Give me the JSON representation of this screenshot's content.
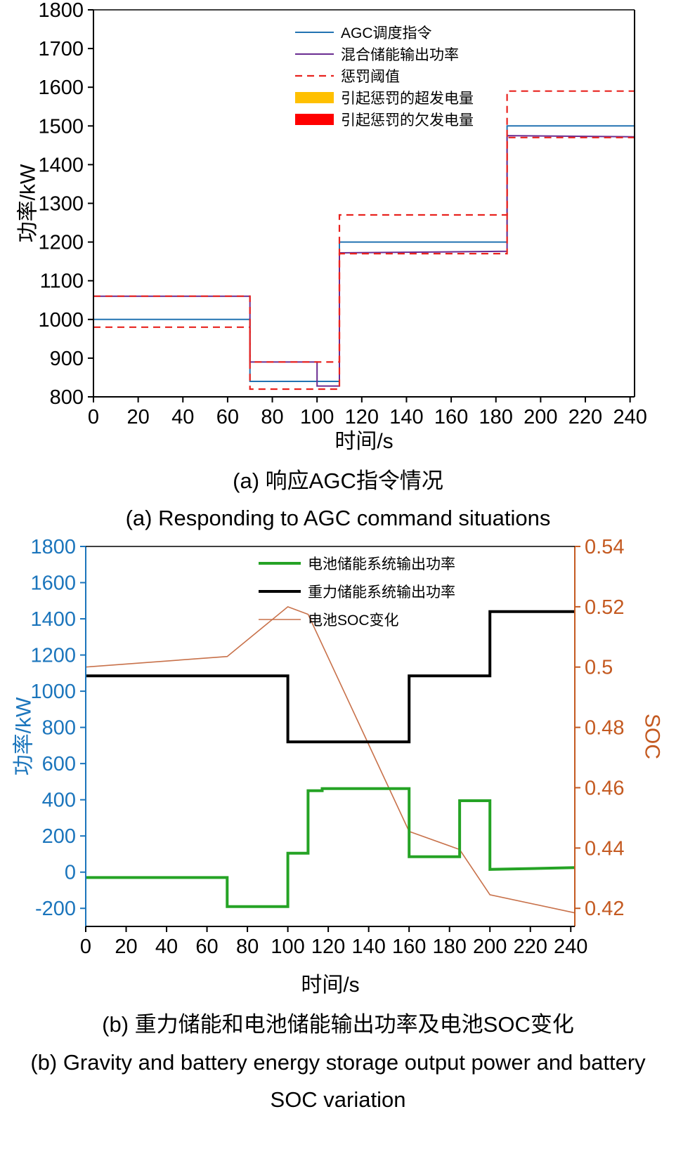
{
  "captions": {
    "a_cn": "(a) 响应AGC指令情况",
    "a_en": "(a) Responding to AGC command situations",
    "b_cn": "(b) 重力储能和电池储能输出功率及电池SOC变化",
    "b_en_line1": "(b) Gravity and battery energy storage output power and battery",
    "b_en_line2": "SOC variation"
  },
  "colors": {
    "agc_command_blue": "#2273b2",
    "hybrid_output_purple": "#6a2c91",
    "penalty_threshold_red": "#e8231f",
    "over_generation_gold": "#ffc000",
    "under_generation_red": "#ff0000",
    "battery_green": "#25a325",
    "gravity_black": "#000000",
    "soc_orange": "#c8714a",
    "left_axis_blue": "#1b75bc",
    "right_axis_orange": "#c45a21"
  },
  "chart_data": [
    {
      "id": "chart-a",
      "type": "line",
      "title": "(a) 响应AGC指令情况",
      "xlabel": "时间/s",
      "ylabel": "功率/kW",
      "xlim": [
        0,
        242
      ],
      "ylim": [
        800,
        1800
      ],
      "xticks": [
        0,
        20,
        40,
        60,
        80,
        100,
        120,
        140,
        160,
        180,
        200,
        220,
        240
      ],
      "yticks": [
        800,
        900,
        1000,
        1100,
        1200,
        1300,
        1400,
        1500,
        1600,
        1700,
        1800
      ],
      "legend": [
        {
          "label": "AGC调度指令",
          "swatch": "line",
          "color": "#2273b2",
          "lw": 2
        },
        {
          "label": "混合储能输出功率",
          "swatch": "line",
          "color": "#6a2c91",
          "lw": 2
        },
        {
          "label": "惩罚阈值",
          "swatch": "dashed",
          "color": "#e8231f",
          "lw": 2.2
        },
        {
          "label": "引起惩罚的超发电量",
          "swatch": "bar",
          "color": "#ffc000"
        },
        {
          "label": "引起惩罚的欠发电量",
          "swatch": "bar",
          "color": "#ff0000"
        }
      ],
      "series": [
        {
          "name": "AGC调度指令",
          "color": "#2273b2",
          "width": 2,
          "points": [
            [
              0,
              1000
            ],
            [
              70,
              1000
            ],
            [
              70,
              840
            ],
            [
              110,
              840
            ],
            [
              110,
              1200
            ],
            [
              185,
              1200
            ],
            [
              185,
              1500
            ],
            [
              242,
              1500
            ]
          ]
        },
        {
          "name": "混合储能输出功率",
          "color": "#6a2c91",
          "width": 2,
          "points": [
            [
              0,
              1060
            ],
            [
              70,
              1060
            ],
            [
              70,
              890
            ],
            [
              100,
              890
            ],
            [
              100,
              828
            ],
            [
              110,
              828
            ],
            [
              110,
              1172
            ],
            [
              185,
              1176
            ],
            [
              185,
              1475
            ],
            [
              242,
              1472
            ]
          ]
        },
        {
          "name": "惩罚阈值-上限",
          "color": "#e8231f",
          "width": 2.2,
          "dash": "10 7",
          "points": [
            [
              0,
              1060
            ],
            [
              70,
              1060
            ],
            [
              70,
              890
            ],
            [
              110,
              890
            ],
            [
              110,
              1270
            ],
            [
              185,
              1270
            ],
            [
              185,
              1590
            ],
            [
              242,
              1590
            ]
          ]
        },
        {
          "name": "惩罚阈值-下限",
          "color": "#e8231f",
          "width": 2.2,
          "dash": "10 7",
          "points": [
            [
              0,
              980
            ],
            [
              70,
              980
            ],
            [
              70,
              820
            ],
            [
              110,
              820
            ],
            [
              110,
              1170
            ],
            [
              185,
              1170
            ],
            [
              185,
              1470
            ],
            [
              242,
              1470
            ]
          ]
        }
      ],
      "layout": {
        "margins": {
          "l": 133,
          "t": 14,
          "r": 59,
          "b": 87
        },
        "spines": {
          "left": "#000000",
          "right": "#000000",
          "top": "#000000",
          "bottom": "#000000"
        },
        "xTickColor": "#000000",
        "yTickColor": "#000000",
        "ylabelColor": "#000000",
        "xlabelColor": "#000000",
        "tickFont": 29,
        "labelFont": 30,
        "legendFont": 21,
        "legendX": 420,
        "legendY": 46,
        "legendDY": 31,
        "swatchLen": 55,
        "ylabelX": 40
      }
    },
    {
      "id": "chart-b",
      "type": "line",
      "title": "(b) 重力储能和电池储能输出功率及电池SOC变化",
      "xlabel": "时间/s",
      "ylabel": "功率/kW",
      "y2label": "SOC",
      "xlim": [
        0,
        242
      ],
      "ylim": [
        -300,
        1800
      ],
      "y2lim": [
        0.414,
        0.54
      ],
      "xticks": [
        0,
        20,
        40,
        60,
        80,
        100,
        120,
        140,
        160,
        180,
        200,
        220,
        240
      ],
      "yticks": [
        -200,
        0,
        200,
        400,
        600,
        800,
        1000,
        1200,
        1400,
        1600,
        1800
      ],
      "y2ticks": [
        0.42,
        0.44,
        0.46,
        0.48,
        0.5,
        0.52,
        0.54
      ],
      "legend": [
        {
          "label": "电池储能系统输出功率",
          "swatch": "line",
          "color": "#25a325",
          "lw": 4
        },
        {
          "label": "重力储能系统输出功率",
          "swatch": "line",
          "color": "#000000",
          "lw": 4
        },
        {
          "label": "电池SOC变化",
          "swatch": "line",
          "color": "#c8714a",
          "lw": 1.6
        }
      ],
      "series": [
        {
          "name": "电池SOC变化",
          "axis": "y2",
          "color": "#c8714a",
          "width": 1.6,
          "points": [
            [
              0,
              0.5
            ],
            [
              70,
              0.5035
            ],
            [
              100,
              0.52
            ],
            [
              110,
              0.5175
            ],
            [
              160,
              0.4455
            ],
            [
              185,
              0.4395
            ],
            [
              200,
              0.4245
            ],
            [
              242,
              0.4185
            ]
          ]
        },
        {
          "name": "电池储能系统输出功率",
          "color": "#25a325",
          "width": 4,
          "points": [
            [
              0,
              -30
            ],
            [
              70,
              -30
            ],
            [
              70,
              -190
            ],
            [
              100,
              -190
            ],
            [
              100,
              105
            ],
            [
              110,
              105
            ],
            [
              110,
              450
            ],
            [
              117,
              450
            ],
            [
              117,
              462
            ],
            [
              160,
              462
            ],
            [
              160,
              85
            ],
            [
              185,
              85
            ],
            [
              185,
              395
            ],
            [
              200,
              395
            ],
            [
              200,
              15
            ],
            [
              242,
              25
            ]
          ]
        },
        {
          "name": "重力储能系统输出功率",
          "color": "#000000",
          "width": 4,
          "points": [
            [
              0,
              1085
            ],
            [
              100,
              1085
            ],
            [
              100,
              720
            ],
            [
              160,
              720
            ],
            [
              160,
              1085
            ],
            [
              200,
              1085
            ],
            [
              200,
              1440
            ],
            [
              242,
              1440
            ]
          ]
        }
      ],
      "layout": {
        "margins": {
          "l": 122,
          "t": 14,
          "r": 144,
          "b": 107
        },
        "spines": {
          "left": "#1b75bc",
          "right": "#c45a21",
          "top": "#000000",
          "bottom": "#000000"
        },
        "xTickColor": "#000000",
        "yTickColor": "#1b75bc",
        "y2TickColor": "#c45a21",
        "ylabelColor": "#1b75bc",
        "xlabelColor": "#000000",
        "y2labelColor": "#c45a21",
        "tickFont": 29,
        "labelFont": 30,
        "legendFont": 21,
        "legendX": 368,
        "legendY": 38,
        "legendDY": 40,
        "swatchLen": 60,
        "ylabelX": 34,
        "y2labelX": 928
      }
    }
  ]
}
